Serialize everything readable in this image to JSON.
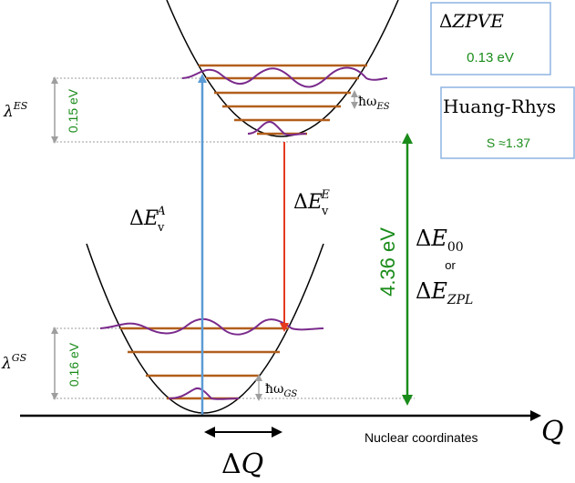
{
  "labels": {
    "zpve_title_delta": "Δ",
    "zpve_title": "ZPVE",
    "zpve_value": "0.13 eV",
    "hr_title": "Huang-Rhys",
    "hr_value": "S ≈1.37",
    "lambda": "λ",
    "lambda_es_sup": "ES",
    "lambda_es_value": "0.15 eV",
    "lambda_gs_sup": "GS",
    "lambda_gs_value": "0.16 eV",
    "hbar_omega": "ħω",
    "hw_es_sub": "ES",
    "hw_gs_sub": "GS",
    "delta_sym": "Δ",
    "e_sym": "E",
    "v_sub": "v",
    "abs_sup": "A",
    "em_sup": "E",
    "zero_zero_sub": "00",
    "or": "or",
    "zpl_sub": "ZPL",
    "gap_value": "4.36 eV",
    "x_axis": "Nuclear coordinates",
    "q_axis": "Q",
    "delta_q_delta": "Δ",
    "delta_q_sym": "Q"
  },
  "colors": {
    "levels": "#b25f1b",
    "wavefunction": "#7a2a8c",
    "absorption": "#5b9bd5",
    "emission": "#e53a1f",
    "gap": "#1a8c1a",
    "green_text": "#1a8c1a",
    "box_border": "#8db4e2",
    "gray": "#9e9e9e"
  }
}
